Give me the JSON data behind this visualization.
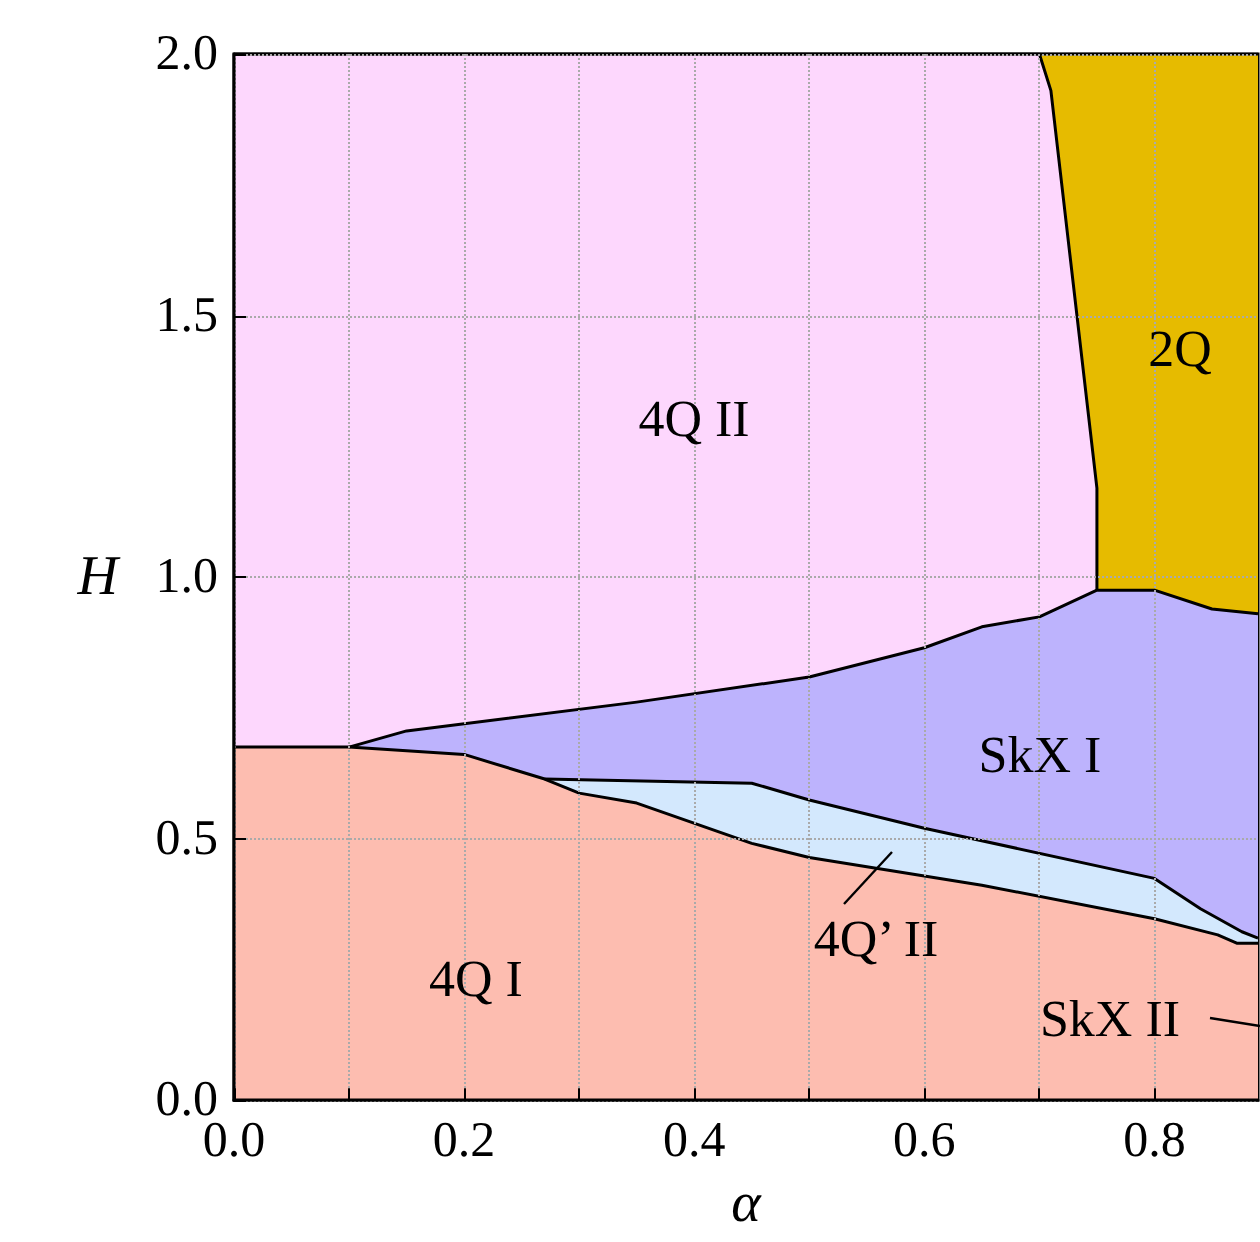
{
  "chart_data": {
    "type": "area",
    "xlabel": "α",
    "ylabel": "H",
    "xlim": [
      0,
      0.89
    ],
    "ylim": [
      0,
      2
    ],
    "xticks": [
      {
        "value": 0,
        "label": "0.0"
      },
      {
        "value": 0.1,
        "label": null
      },
      0.2,
      {
        "value": 0.3,
        "label": null
      },
      0.4,
      {
        "value": 0.5,
        "label": null
      },
      0.6,
      {
        "value": 0.7,
        "label": null
      },
      0.8
    ],
    "yticks": [
      {
        "value": 0,
        "label": "0.0"
      },
      0.5,
      {
        "value": 1,
        "label": "1.0"
      },
      1.5,
      {
        "value": 2,
        "label": "2.0"
      }
    ],
    "grid": true,
    "line_style": "solid",
    "marker": "none",
    "series": [
      {
        "name": "2Q",
        "color": "#e6bb00",
        "x": [
          0,
          0.89
        ],
        "values": [
          2,
          2
        ]
      },
      {
        "name": "4Q II",
        "color": "#fdd7fd",
        "x": [
          0,
          0.7,
          0.71,
          0.75,
          0.75
        ],
        "values": [
          2,
          2,
          1.93,
          1.17,
          0.975
        ]
      },
      {
        "name": "SkX I",
        "color": "#bdb3fd",
        "x": [
          0.1,
          0.15,
          0.35,
          0.5,
          0.6,
          0.65,
          0.7,
          0.75,
          0.8,
          0.85,
          0.89
        ],
        "values": [
          0.675,
          0.706,
          0.761,
          0.809,
          0.865,
          0.905,
          0.924,
          0.975,
          0.975,
          0.939,
          0.93
        ]
      },
      {
        "name": "4Q’ II",
        "color": "#d3e8fd",
        "x": [
          0.27,
          0.45,
          0.5,
          0.6,
          0.8,
          0.84,
          0.876,
          0.89
        ],
        "values": [
          0.614,
          0.606,
          0.574,
          0.52,
          0.424,
          0.366,
          0.322,
          0.31
        ]
      },
      {
        "name": "4Q I",
        "color": "#fdbdb0",
        "x": [
          0,
          0.1,
          0.2,
          0.27,
          0.3,
          0.35,
          0.45,
          0.5,
          0.65,
          0.8,
          0.855,
          0.872,
          0.89
        ],
        "values": [
          0.675,
          0.675,
          0.661,
          0.614,
          0.587,
          0.568,
          0.491,
          0.464,
          0.411,
          0.347,
          0.316,
          0.3,
          0.3
        ]
      }
    ],
    "annotations": [
      "SkX II"
    ]
  }
}
